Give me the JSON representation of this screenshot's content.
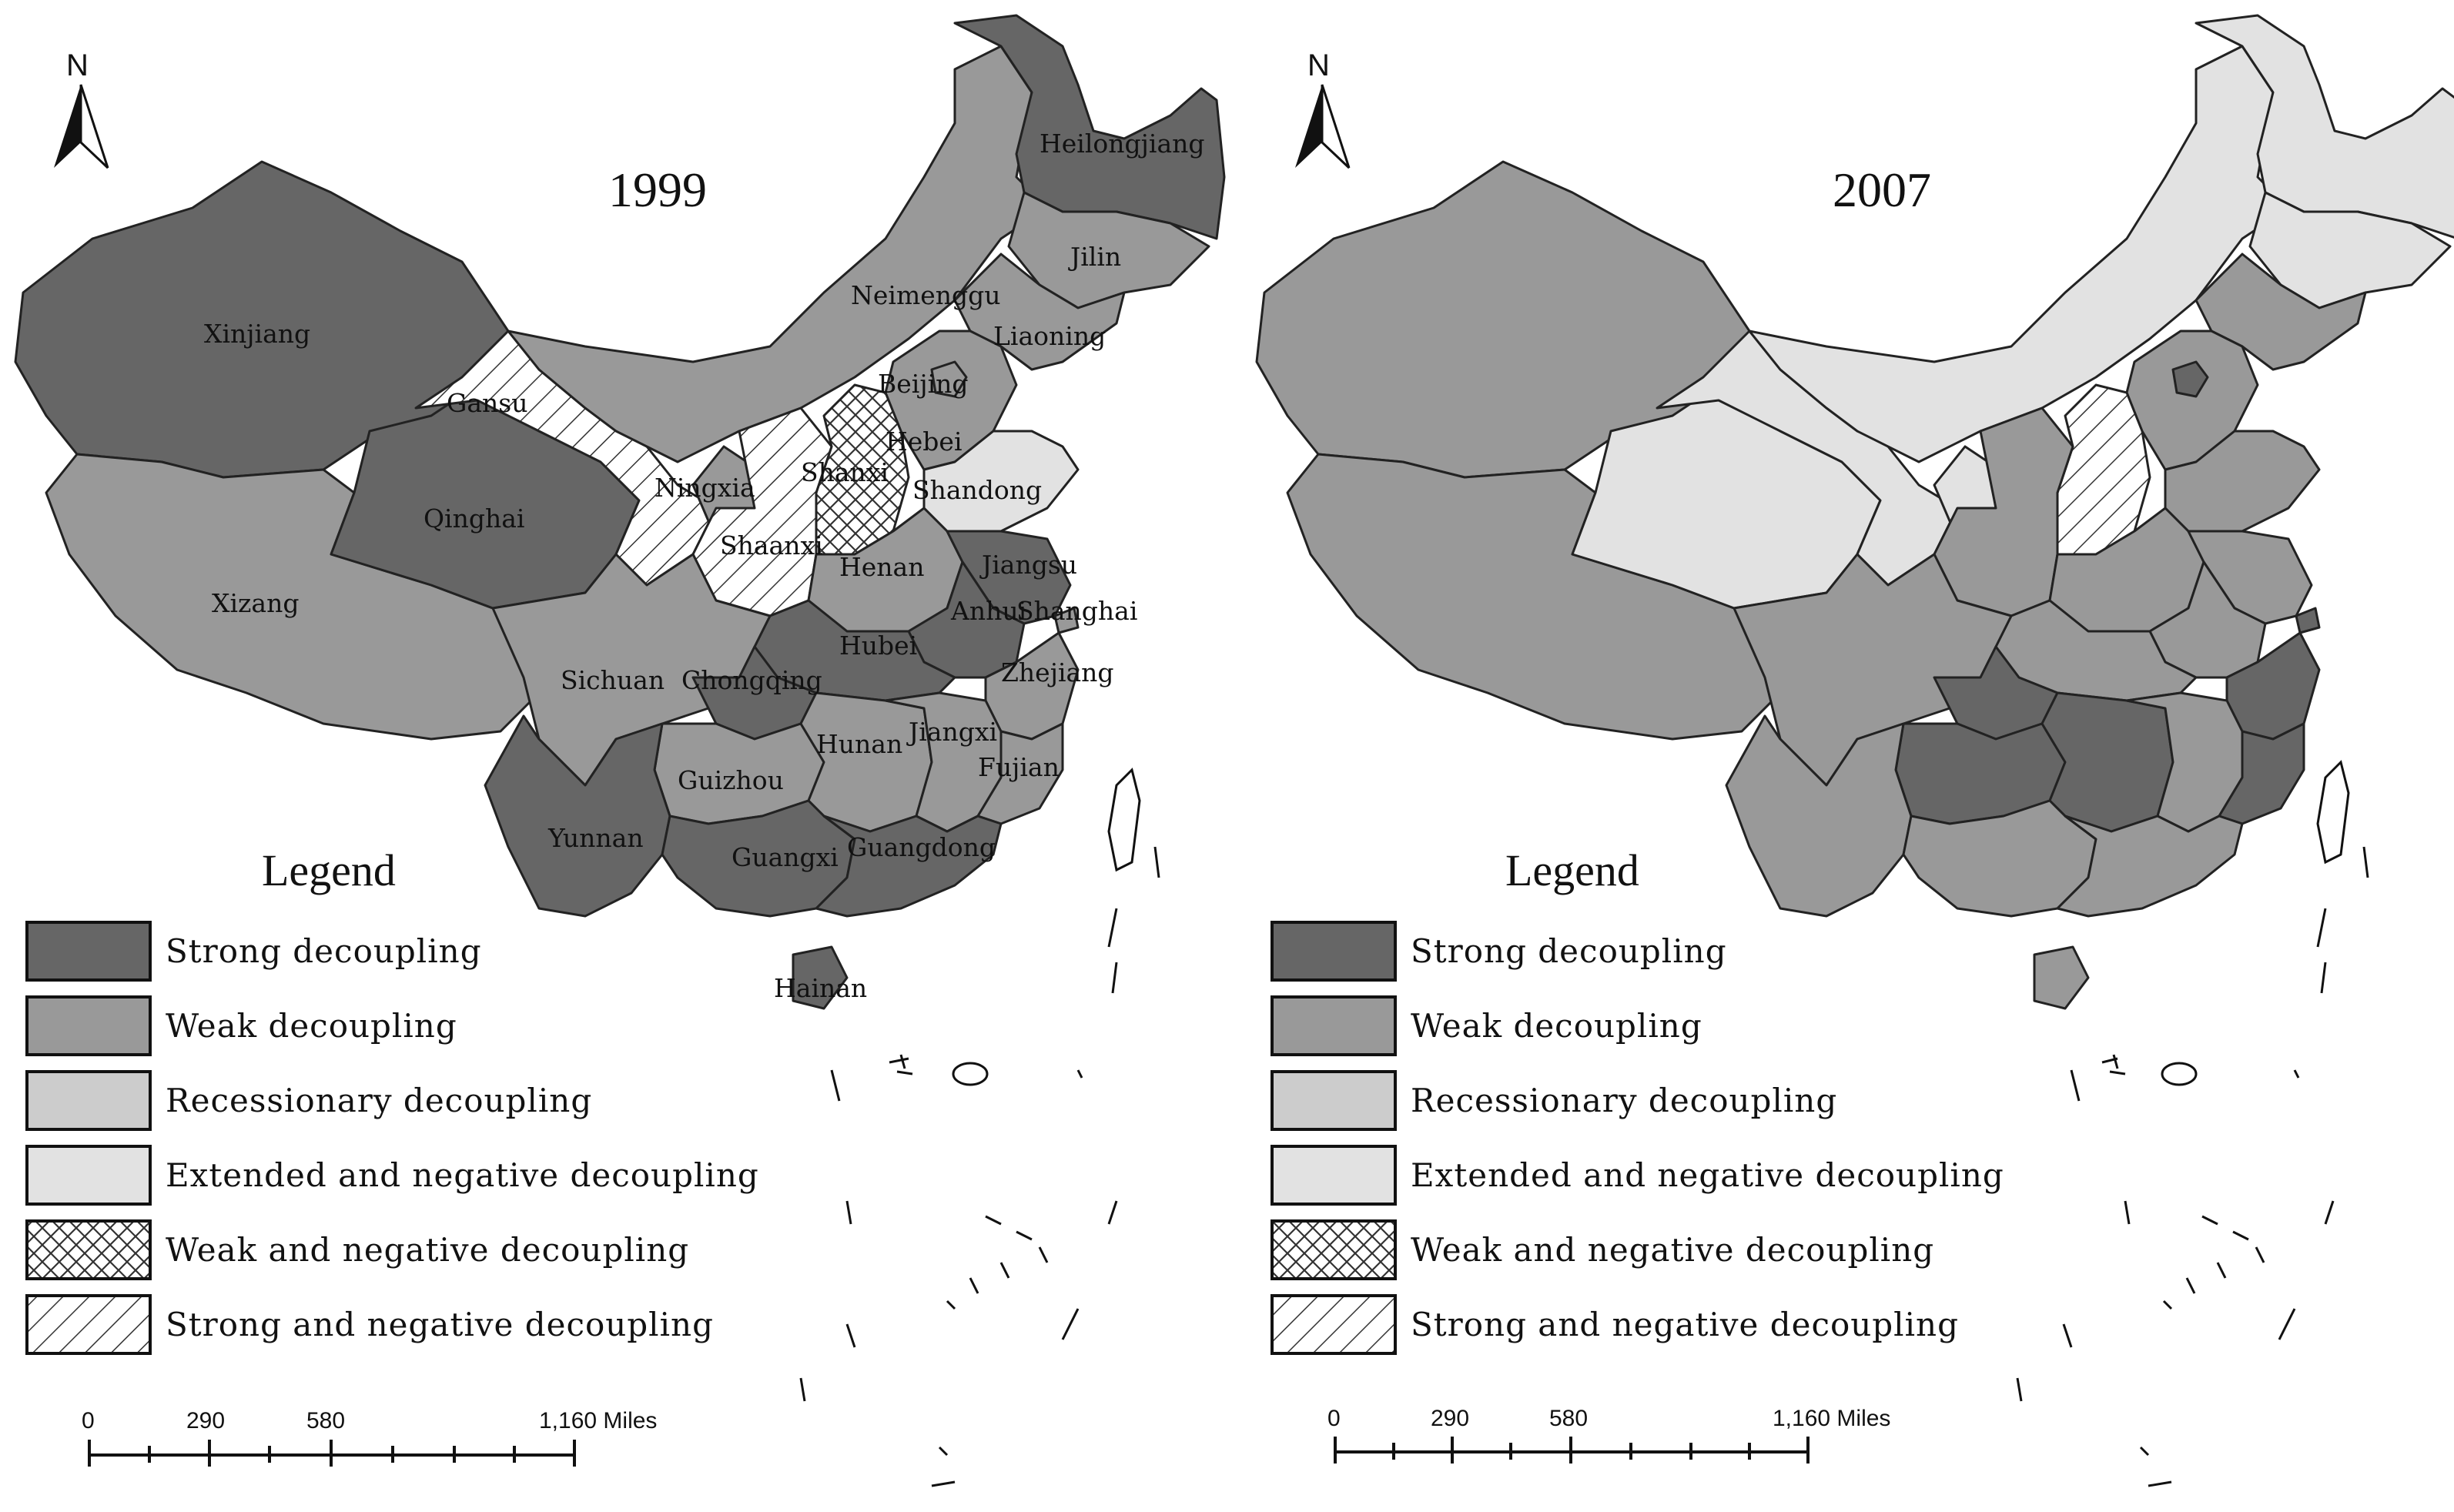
{
  "colors": {
    "strong": "#666666",
    "weak": "#999999",
    "recessionary": "#cccccc",
    "extended": "#e2e2e2",
    "border": "#222222"
  },
  "maps": [
    {
      "year": "1999",
      "north": "N",
      "legend_title": "Legend",
      "scale": {
        "t0": "0",
        "t1": "290",
        "t2": "580",
        "t3": "1,160 Miles"
      },
      "provinces": {
        "xinjiang": {
          "label": "Xinjiang",
          "category": "strong"
        },
        "xizang": {
          "label": "Xizang",
          "category": "weak"
        },
        "qinghai": {
          "label": "Qinghai",
          "category": "strong"
        },
        "gansu": {
          "label": "Gansu",
          "category": "strong-negative"
        },
        "neimenggu": {
          "label": "Neimenggu",
          "category": "weak"
        },
        "heilongjiang": {
          "label": "Heilongjiang",
          "category": "strong"
        },
        "jilin": {
          "label": "Jilin",
          "category": "weak"
        },
        "liaoning": {
          "label": "Liaoning",
          "category": "weak"
        },
        "beijing": {
          "label": "Beijing",
          "category": "weak"
        },
        "hebei": {
          "label": "Hebei",
          "category": "weak"
        },
        "shandong": {
          "label": "Shandong",
          "category": "extended"
        },
        "ningxia": {
          "label": "Ningxia",
          "category": "weak"
        },
        "shanxi": {
          "label": "Shanxi",
          "category": "weak-negative"
        },
        "shaanxi": {
          "label": "Shaanxi",
          "category": "strong-negative"
        },
        "henan": {
          "label": "Henan",
          "category": "weak"
        },
        "jiangsu": {
          "label": "Jiangsu",
          "category": "strong"
        },
        "anhui": {
          "label": "Anhui",
          "category": "strong"
        },
        "shanghai": {
          "label": "Shanghai",
          "category": "weak"
        },
        "sichuan": {
          "label": "Sichuan",
          "category": "weak"
        },
        "chongqing": {
          "label": "Chongqing",
          "category": "strong"
        },
        "hubei": {
          "label": "Hubei",
          "category": "strong"
        },
        "zhejiang": {
          "label": "Zhejiang",
          "category": "weak"
        },
        "hunan": {
          "label": "Hunan",
          "category": "weak"
        },
        "jiangxi": {
          "label": "Jiangxi",
          "category": "weak"
        },
        "guizhou": {
          "label": "Guizhou",
          "category": "weak"
        },
        "fujian": {
          "label": "Fujian",
          "category": "weak"
        },
        "yunnan": {
          "label": "Yunnan",
          "category": "strong"
        },
        "guangxi": {
          "label": "Guangxi",
          "category": "strong"
        },
        "guangdong": {
          "label": "Guangdong",
          "category": "strong"
        },
        "hainan": {
          "label": "Hainan",
          "category": "strong"
        }
      },
      "legend": [
        {
          "key": "strong",
          "text": "Strong decoupling"
        },
        {
          "key": "weak",
          "text": "Weak decoupling"
        },
        {
          "key": "recessionary",
          "text": "Recessionary decoupling"
        },
        {
          "key": "extended",
          "text": "Extended and negative decoupling"
        },
        {
          "key": "weak-negative",
          "text": "Weak and negative decoupling"
        },
        {
          "key": "strong-negative",
          "text": "Strong and negative decoupling"
        }
      ]
    },
    {
      "year": "2007",
      "north": "N",
      "legend_title": "Legend",
      "scale": {
        "t0": "0",
        "t1": "290",
        "t2": "580",
        "t3": "1,160 Miles"
      },
      "provinces": {
        "xinjiang": {
          "category": "weak"
        },
        "xizang": {
          "category": "weak"
        },
        "qinghai": {
          "category": "extended"
        },
        "gansu": {
          "category": "extended"
        },
        "neimenggu": {
          "category": "extended"
        },
        "heilongjiang": {
          "category": "extended"
        },
        "jilin": {
          "category": "extended"
        },
        "liaoning": {
          "category": "weak"
        },
        "beijing": {
          "category": "strong"
        },
        "hebei": {
          "category": "weak"
        },
        "shandong": {
          "category": "weak"
        },
        "ningxia": {
          "category": "extended"
        },
        "shanxi": {
          "category": "strong-negative"
        },
        "shaanxi": {
          "category": "weak"
        },
        "henan": {
          "category": "weak"
        },
        "jiangsu": {
          "category": "weak"
        },
        "anhui": {
          "category": "weak"
        },
        "shanghai": {
          "category": "strong"
        },
        "sichuan": {
          "category": "weak"
        },
        "chongqing": {
          "category": "strong"
        },
        "hubei": {
          "category": "weak"
        },
        "zhejiang": {
          "category": "strong"
        },
        "hunan": {
          "category": "strong"
        },
        "jiangxi": {
          "category": "weak"
        },
        "guizhou": {
          "category": "strong"
        },
        "fujian": {
          "category": "strong"
        },
        "yunnan": {
          "category": "weak"
        },
        "guangxi": {
          "category": "weak"
        },
        "guangdong": {
          "category": "weak"
        },
        "hainan": {
          "category": "weak"
        }
      },
      "legend": [
        {
          "key": "strong",
          "text": "Strong decoupling"
        },
        {
          "key": "weak",
          "text": "Weak decoupling"
        },
        {
          "key": "recessionary",
          "text": "Recessionary decoupling"
        },
        {
          "key": "extended",
          "text": "Extended and negative decoupling"
        },
        {
          "key": "weak-negative",
          "text": "Weak and negative decoupling"
        },
        {
          "key": "strong-negative",
          "text": "Strong and negative decoupling"
        }
      ]
    }
  ]
}
